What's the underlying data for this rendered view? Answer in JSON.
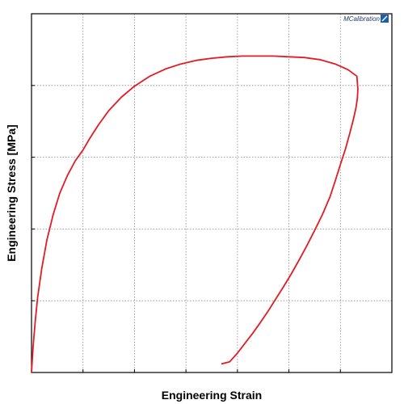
{
  "chart_data": {
    "type": "line",
    "title": "",
    "xlabel": "Engineering Strain",
    "ylabel": "Engineering Stress [MPa]",
    "xlim": [
      0,
      7
    ],
    "ylim": [
      0,
      5
    ],
    "grid": true,
    "x_ticks": [
      0,
      1,
      2,
      3,
      4,
      5,
      6,
      7
    ],
    "y_ticks": [
      0,
      1,
      2,
      3,
      4,
      5
    ],
    "tick_labels_shown": false,
    "series": [
      {
        "color": "#e31b23",
        "x": [
          0.0,
          0.03,
          0.07,
          0.12,
          0.2,
          0.3,
          0.42,
          0.55,
          0.7,
          0.85,
          1.0,
          1.12,
          1.3,
          1.5,
          1.75,
          2.0,
          2.3,
          2.6,
          2.9,
          3.2,
          3.5,
          3.8,
          4.1,
          4.4,
          4.7,
          5.0,
          5.3,
          5.6,
          5.9,
          6.15,
          6.32,
          6.34,
          6.33,
          6.3,
          6.25,
          6.18,
          6.1,
          6.0,
          5.9,
          5.8,
          5.65,
          5.5,
          5.35,
          5.2,
          5.05,
          4.9,
          4.75,
          4.6,
          4.45,
          4.3,
          4.15,
          4.0,
          3.85,
          3.7
        ],
        "y": [
          0.0,
          0.35,
          0.7,
          1.05,
          1.45,
          1.85,
          2.2,
          2.5,
          2.75,
          2.95,
          3.1,
          3.25,
          3.45,
          3.65,
          3.84,
          3.99,
          4.13,
          4.23,
          4.3,
          4.35,
          4.38,
          4.4,
          4.41,
          4.41,
          4.41,
          4.4,
          4.39,
          4.36,
          4.3,
          4.22,
          4.13,
          3.95,
          3.82,
          3.68,
          3.52,
          3.33,
          3.12,
          2.9,
          2.67,
          2.45,
          2.2,
          1.98,
          1.77,
          1.57,
          1.38,
          1.2,
          1.03,
          0.86,
          0.7,
          0.55,
          0.41,
          0.27,
          0.15,
          0.12
        ]
      }
    ]
  },
  "logo": {
    "text": "MCalibration",
    "color": "#1f3a73"
  }
}
